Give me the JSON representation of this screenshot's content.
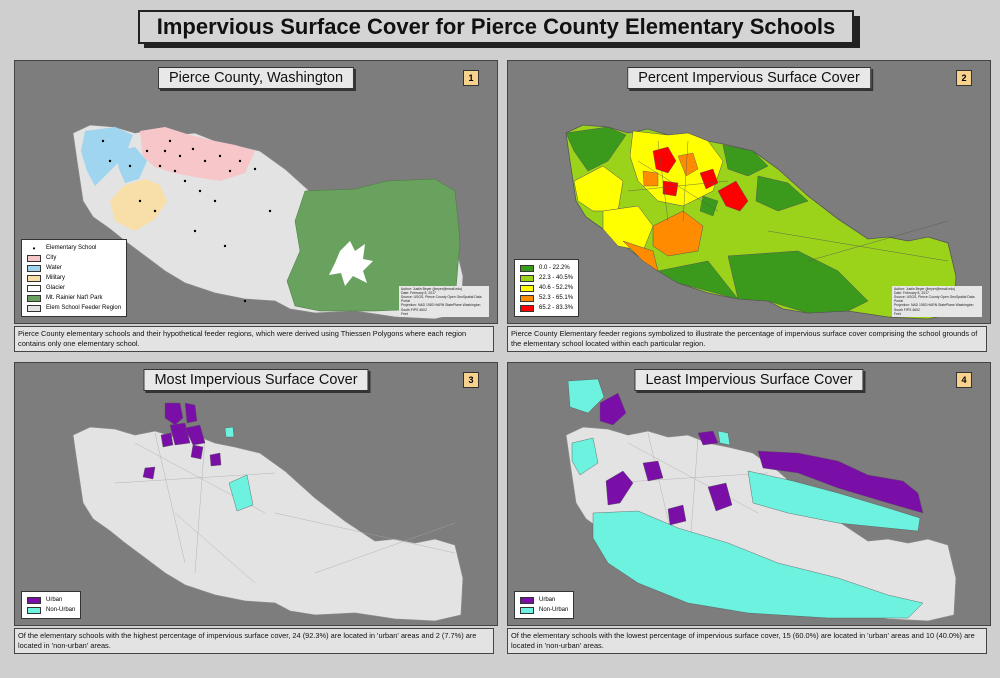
{
  "title": "Impervious Surface Cover for Pierce County Elementary Schools",
  "credit_lines": [
    "Author: Justin Beyer (jbeyer@email.edu)",
    "Date: February 8, 2017",
    "Source: USGS, Pierce County Open GeoSpatial Data Portal",
    "Projection: NAD 1983 HARN StatePlane Washington South FIPS 4602",
    "Feet"
  ],
  "panels": [
    {
      "number": "1",
      "title": "Pierce County, Washington",
      "caption": "Pierce County elementary schools and their hypothetical feeder regions, which were derived using Thiessen Polygons where each region contains only one elementary school.",
      "legend": [
        {
          "label": "Elementary School",
          "type": "point",
          "color": "#000000"
        },
        {
          "label": "City",
          "type": "fill",
          "color": "#f6c6c9"
        },
        {
          "label": "Water",
          "type": "fill",
          "color": "#9fd5ee"
        },
        {
          "label": "Military",
          "type": "fill",
          "color": "#f8dfa8"
        },
        {
          "label": "Glacier",
          "type": "fill",
          "color": "#ffffff"
        },
        {
          "label": "Mt. Rainier Nat'l Park",
          "type": "fill",
          "color": "#68a25e"
        },
        {
          "label": "Elem School Feeder Region",
          "type": "fill",
          "color": "#e3e3e3"
        }
      ]
    },
    {
      "number": "2",
      "title": "Percent Impervious Surface Cover",
      "caption": "Pierce County Elementary feeder regions symbolized to illustrate the percentage of impervious surface cover comprising the school grounds of the elementary school located within each particular region.",
      "legend": [
        {
          "label": "0.0 - 22.2%",
          "color": "#3b9a1c"
        },
        {
          "label": "22.3 - 40.5%",
          "color": "#9bd21a"
        },
        {
          "label": "40.6 - 52.2%",
          "color": "#ffff00"
        },
        {
          "label": "52.3 - 65.1%",
          "color": "#ff8c00"
        },
        {
          "label": "65.2 - 83.3%",
          "color": "#ff0000"
        }
      ]
    },
    {
      "number": "3",
      "title": "Most Impervious Surface Cover",
      "caption": "Of the elementary schools with the highest percentage of impervious surface cover, 24 (92.3%) are located in 'urban' areas and 2 (7.7%) are located in 'non-urban' areas.",
      "legend": [
        {
          "label": "Urban",
          "color": "#7a0fa8"
        },
        {
          "label": "Non-Urban",
          "color": "#6cf2de"
        }
      ]
    },
    {
      "number": "4",
      "title": "Least Impervious Surface Cover",
      "caption": "Of the elementary schools with the lowest percentage of impervious surface cover, 15 (60.0%) are located in 'urban' areas and 10 (40.0%) are located in 'non-urban' areas.",
      "legend": [
        {
          "label": "Urban",
          "color": "#7a0fa8"
        },
        {
          "label": "Non-Urban",
          "color": "#6cf2de"
        }
      ]
    }
  ]
}
